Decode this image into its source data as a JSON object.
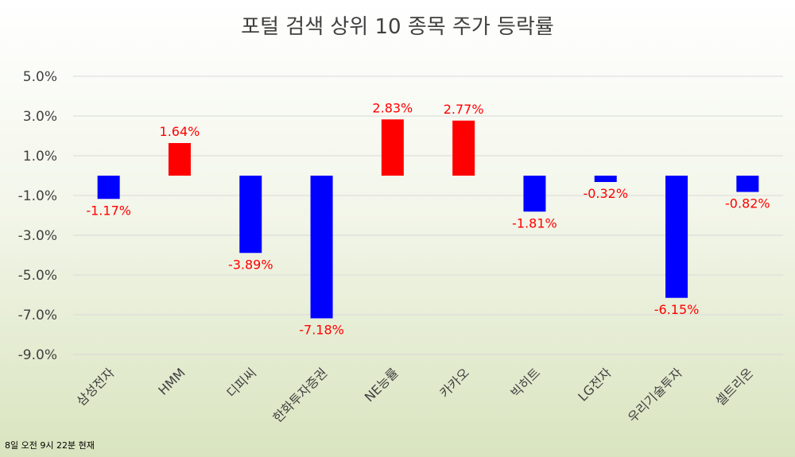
{
  "chart_data": {
    "type": "bar",
    "title": "포털 검색 상위 10 종목 주가 등락률",
    "categories": [
      "삼성전자",
      "HMM",
      "디피씨",
      "한화투자증권",
      "NE능률",
      "카카오",
      "빅히트",
      "LG전자",
      "우리기술투자",
      "셀트리온"
    ],
    "values": [
      -1.17,
      1.64,
      -3.89,
      -7.18,
      2.83,
      2.77,
      -1.81,
      -0.32,
      -6.15,
      -0.82
    ],
    "data_labels": [
      "-1.17%",
      "1.64%",
      "-3.89%",
      "-7.18%",
      "2.83%",
      "2.77%",
      "-1.81%",
      "-0.32%",
      "-6.15%",
      "-0.82%"
    ],
    "ylim": [
      -9.0,
      5.0
    ],
    "yticks": [
      5.0,
      3.0,
      1.0,
      -1.0,
      -3.0,
      -5.0,
      -7.0,
      -9.0
    ],
    "ytick_labels": [
      "5.0%",
      "3.0%",
      "1.0%",
      "-1.0%",
      "-3.0%",
      "-5.0%",
      "-7.0%",
      "-9.0%"
    ],
    "xlabel": "",
    "ylabel": "",
    "grid": true,
    "legend": "none",
    "colors": {
      "positive": "#ff0000",
      "negative": "#0000ff",
      "data_label": "#ff0000",
      "grid": "#d9d9d9"
    }
  },
  "footnote": "8일 오전 9시 22분 현재"
}
